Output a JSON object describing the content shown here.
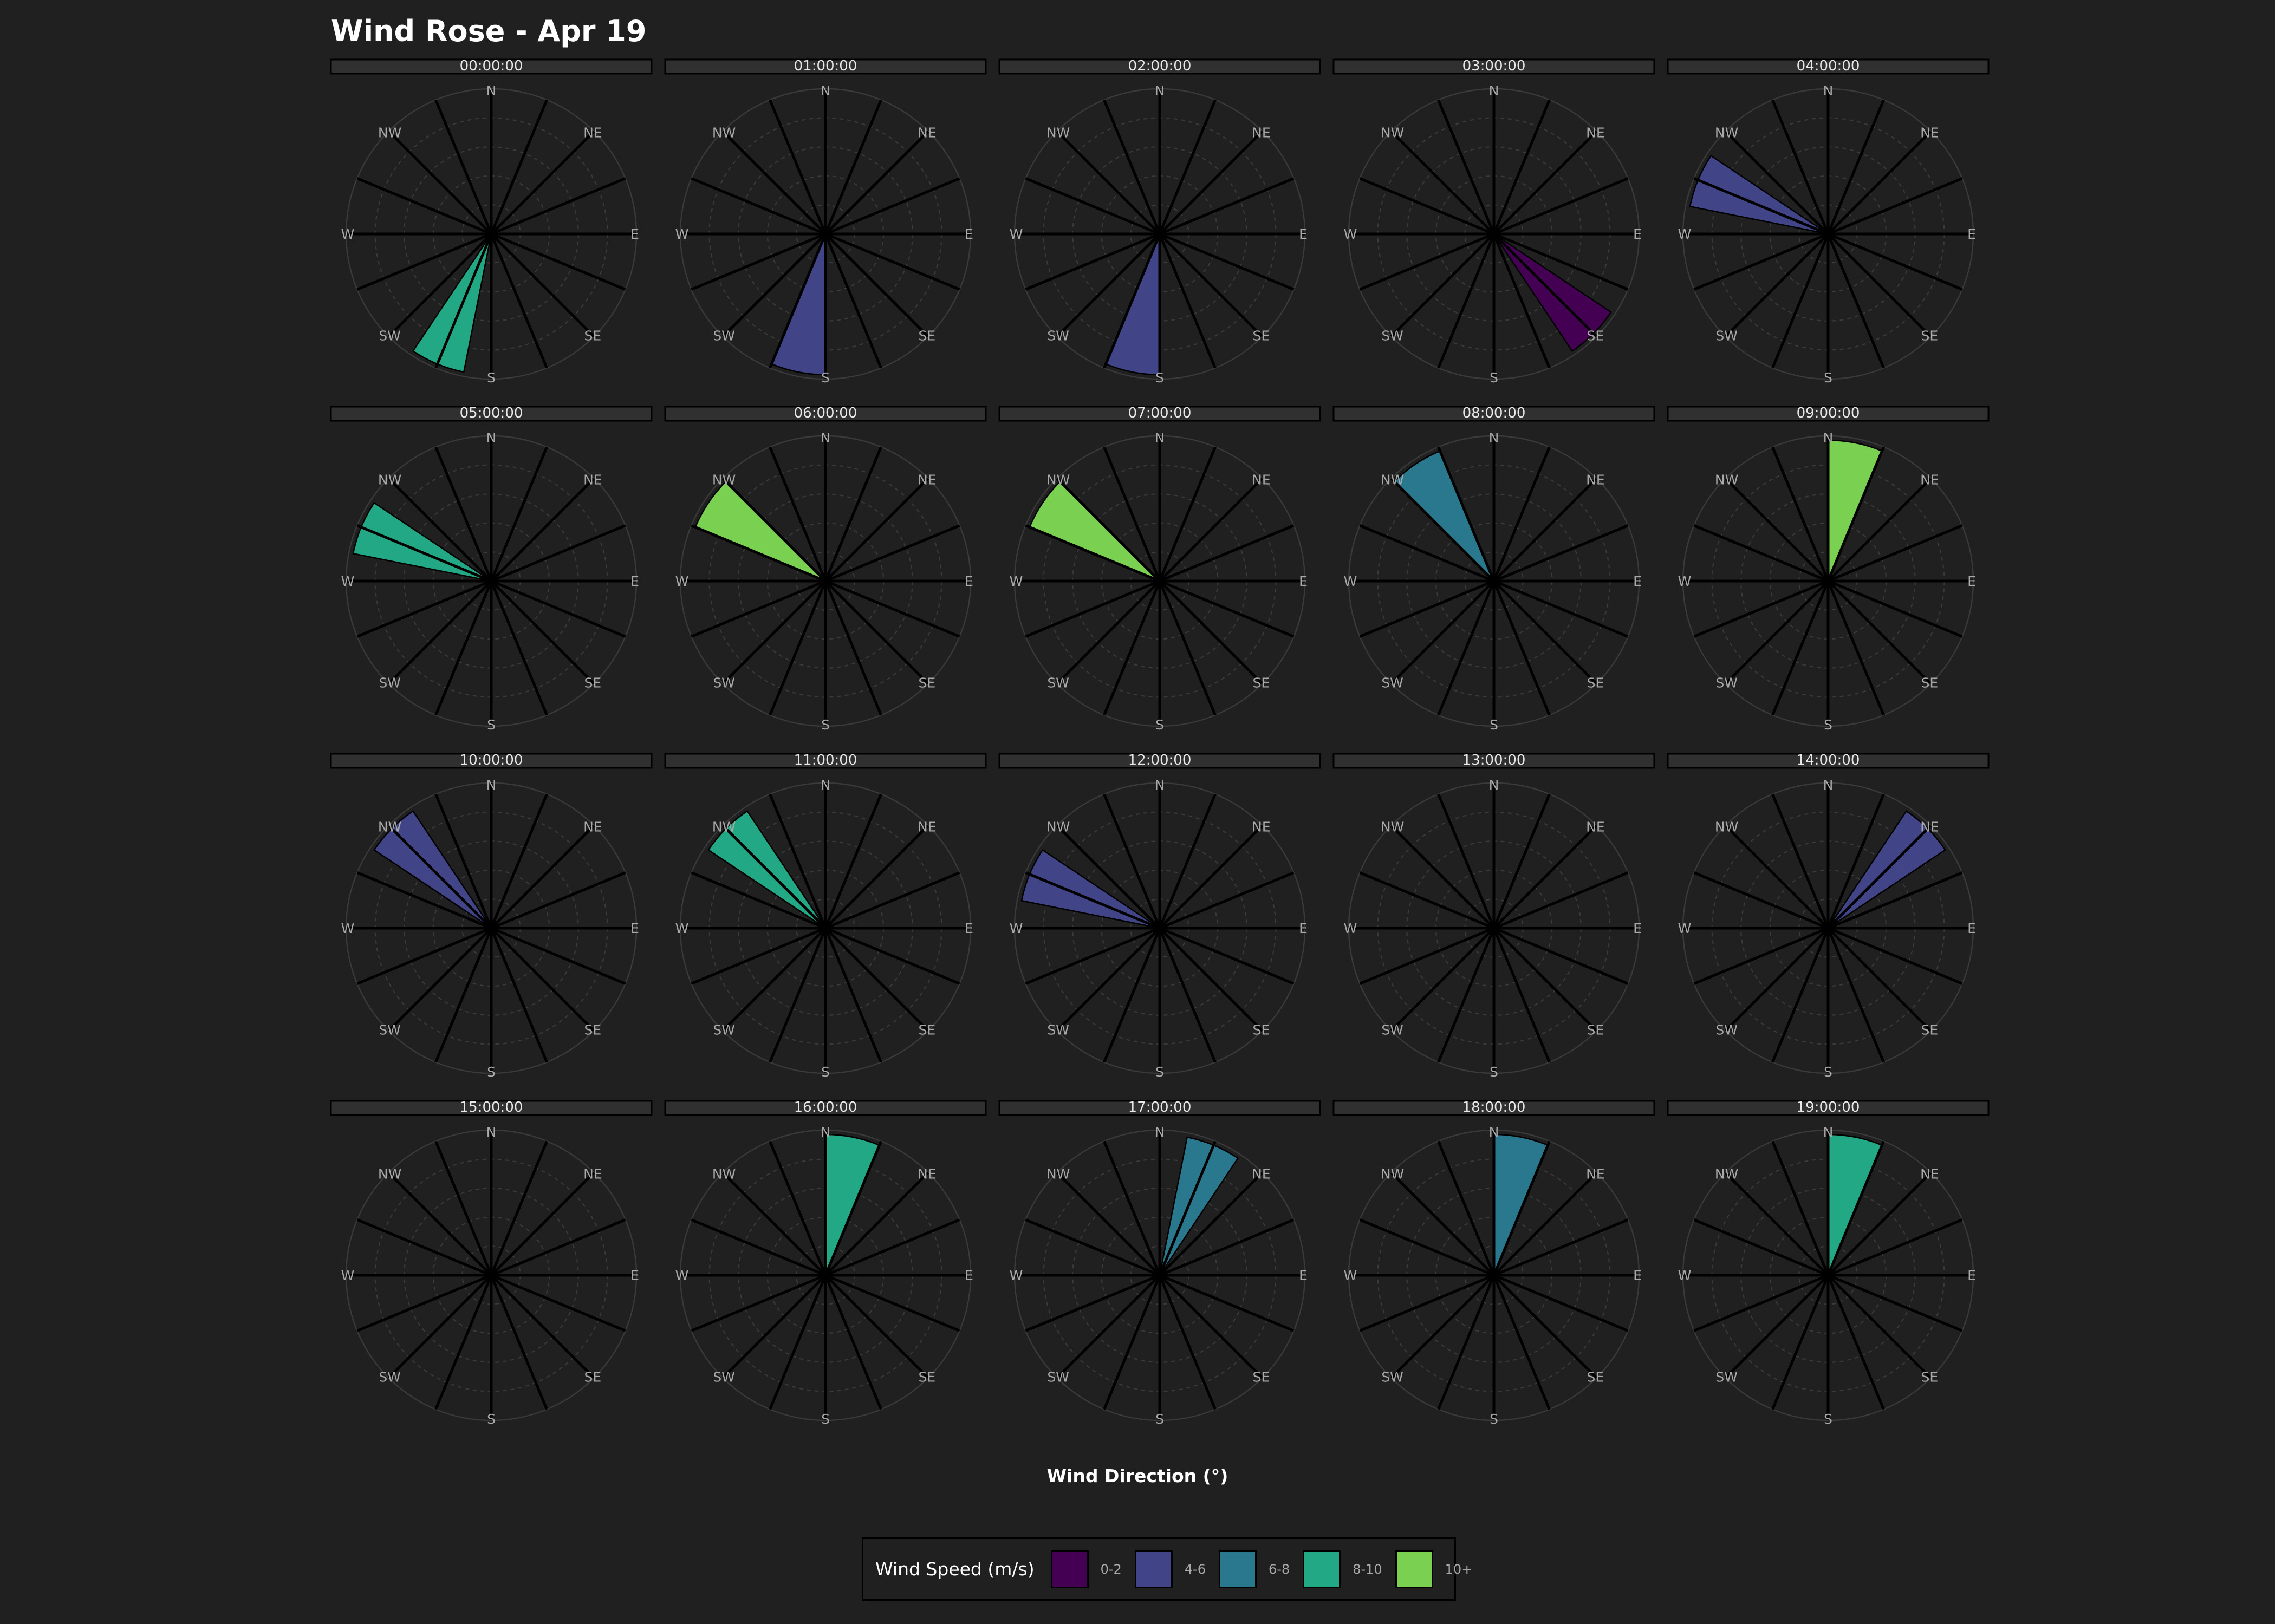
{
  "title": "Wind Rose - Apr 19",
  "colors": {
    "background": "#202020",
    "panel_ring": "#3a3a3a",
    "spoke": "#000000",
    "label": "#a9a9a9",
    "strip": "#303030"
  },
  "chart_data": {
    "type": "wind-rose (polar bar, faceted by hour)",
    "title": "Wind Rose - Apr 19",
    "xlabel": "Wind Direction (°)",
    "directions": [
      "N",
      "NE",
      "E",
      "SE",
      "S",
      "SW",
      "W",
      "NW"
    ],
    "sector_width_deg": 22.5,
    "radial_max": 1,
    "legend": {
      "title": "Wind Speed (m/s)",
      "placement": "bottom",
      "entries": [
        {
          "label": "0-2",
          "color": "#440154"
        },
        {
          "label": "4-6",
          "color": "#414487"
        },
        {
          "label": "6-8",
          "color": "#2a788e"
        },
        {
          "label": "8-10",
          "color": "#22a884"
        },
        {
          "label": "10+",
          "color": "#7ad151"
        }
      ]
    },
    "panels": [
      {
        "time": "00:00:00",
        "bars": [
          {
            "direction_deg": 202.5,
            "value": 1,
            "speed_bin": "8-10"
          }
        ]
      },
      {
        "time": "01:00:00",
        "bars": [
          {
            "direction_deg": 191.25,
            "value": 1,
            "speed_bin": "4-6"
          }
        ]
      },
      {
        "time": "02:00:00",
        "bars": [
          {
            "direction_deg": 191.25,
            "value": 1,
            "speed_bin": "4-6"
          }
        ]
      },
      {
        "time": "03:00:00",
        "bars": [
          {
            "direction_deg": 135,
            "value": 1,
            "speed_bin": "0-2"
          }
        ]
      },
      {
        "time": "04:00:00",
        "bars": [
          {
            "direction_deg": 292.5,
            "value": 1,
            "speed_bin": "4-6"
          }
        ]
      },
      {
        "time": "05:00:00",
        "bars": [
          {
            "direction_deg": 292.5,
            "value": 1,
            "speed_bin": "8-10"
          }
        ]
      },
      {
        "time": "06:00:00",
        "bars": [
          {
            "direction_deg": 303.75,
            "value": 1,
            "speed_bin": "10+"
          }
        ]
      },
      {
        "time": "07:00:00",
        "bars": [
          {
            "direction_deg": 303.75,
            "value": 1,
            "speed_bin": "10+"
          }
        ]
      },
      {
        "time": "08:00:00",
        "bars": [
          {
            "direction_deg": 326.25,
            "value": 1,
            "speed_bin": "6-8"
          }
        ]
      },
      {
        "time": "09:00:00",
        "bars": [
          {
            "direction_deg": 11.25,
            "value": 1,
            "speed_bin": "10+"
          }
        ]
      },
      {
        "time": "10:00:00",
        "bars": [
          {
            "direction_deg": 315,
            "value": 1,
            "speed_bin": "4-6"
          }
        ]
      },
      {
        "time": "11:00:00",
        "bars": [
          {
            "direction_deg": 315,
            "value": 1,
            "speed_bin": "8-10"
          }
        ]
      },
      {
        "time": "12:00:00",
        "bars": [
          {
            "direction_deg": 292.5,
            "value": 1,
            "speed_bin": "4-6"
          }
        ]
      },
      {
        "time": "13:00:00",
        "bars": []
      },
      {
        "time": "14:00:00",
        "bars": [
          {
            "direction_deg": 45,
            "value": 1,
            "speed_bin": "4-6"
          }
        ]
      },
      {
        "time": "15:00:00",
        "bars": []
      },
      {
        "time": "16:00:00",
        "bars": [
          {
            "direction_deg": 11.25,
            "value": 1,
            "speed_bin": "8-10"
          }
        ]
      },
      {
        "time": "17:00:00",
        "bars": [
          {
            "direction_deg": 22.5,
            "value": 1,
            "speed_bin": "6-8"
          }
        ]
      },
      {
        "time": "18:00:00",
        "bars": [
          {
            "direction_deg": 11.25,
            "value": 1,
            "speed_bin": "6-8"
          }
        ]
      },
      {
        "time": "19:00:00",
        "bars": [
          {
            "direction_deg": 11.25,
            "value": 1,
            "speed_bin": "8-10"
          }
        ]
      }
    ]
  }
}
